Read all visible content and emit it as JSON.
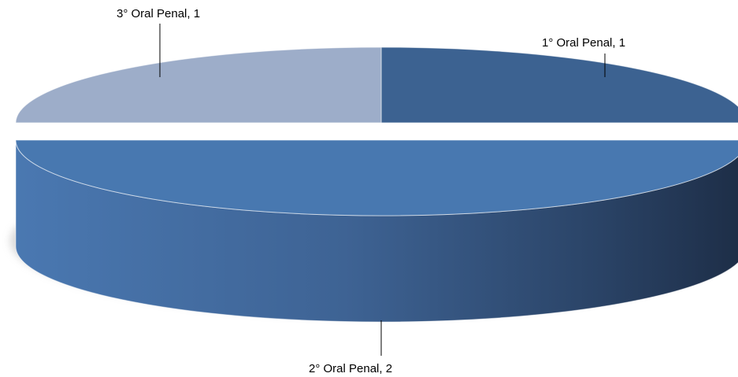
{
  "chart_data": {
    "type": "pie",
    "title": "",
    "categories": [
      "1° Oral Penal",
      "2° Oral Penal",
      "3° Oral Penal"
    ],
    "values": [
      1,
      2,
      1
    ],
    "labels": [
      "1° Oral Penal, 1",
      "2° Oral Penal, 2",
      "3° Oral Penal, 1"
    ],
    "colors": [
      "#3c6291",
      "#4878b0",
      "#9dadc9"
    ],
    "legend": "none",
    "style": "3d-exploded"
  }
}
